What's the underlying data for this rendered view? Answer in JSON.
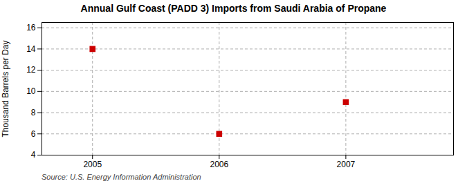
{
  "chart_data": {
    "type": "scatter",
    "title": "Annual Gulf Coast (PADD 3) Imports from Saudi Arabia of Propane",
    "ylabel": "Thousand Barrels per Day",
    "source": "Source: U.S. Energy Information Administration",
    "x": [
      2005,
      2006,
      2007
    ],
    "values": [
      14,
      6,
      9
    ],
    "color": "#cc0000",
    "marker": "square",
    "xlim": [
      2004.6,
      2007.85
    ],
    "xticks": [
      2005,
      2006,
      2007
    ],
    "ylim": [
      4,
      16.5
    ],
    "yticks": [
      4,
      6,
      8,
      10,
      12,
      14,
      16
    ],
    "grid": true
  }
}
